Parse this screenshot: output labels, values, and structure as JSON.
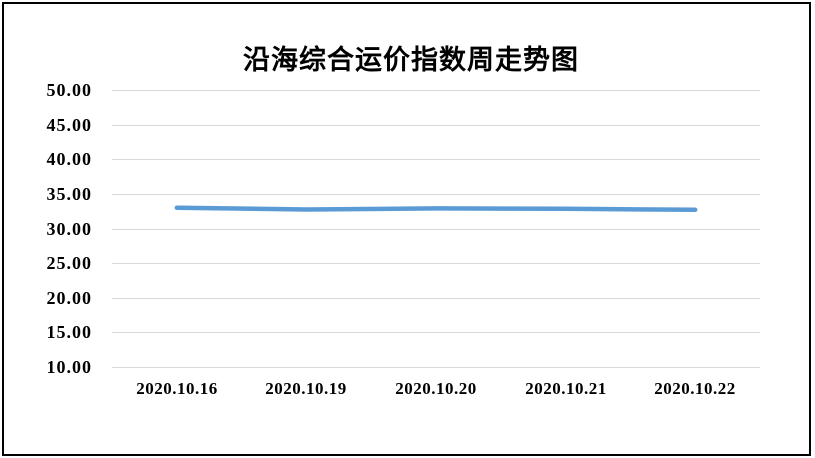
{
  "chart_data": {
    "type": "line",
    "title": "沿海综合运价指数周走势图",
    "categories": [
      "2020.10.16",
      "2020.10.19",
      "2020.10.20",
      "2020.10.21",
      "2020.10.22"
    ],
    "values": [
      33.0,
      32.75,
      32.9,
      32.85,
      32.7
    ],
    "xlabel": "",
    "ylabel": "",
    "ylim": [
      10,
      50
    ],
    "ytick_step": 5,
    "y_tick_labels": [
      "10.00",
      "15.00",
      "20.00",
      "25.00",
      "30.00",
      "35.00",
      "40.00",
      "45.00",
      "50.00"
    ],
    "grid": true,
    "legend": false,
    "line_color": "#5B9BD5",
    "gridline_color": "#d9d9d9",
    "border_color": "#000000",
    "text_color": "#000000"
  }
}
